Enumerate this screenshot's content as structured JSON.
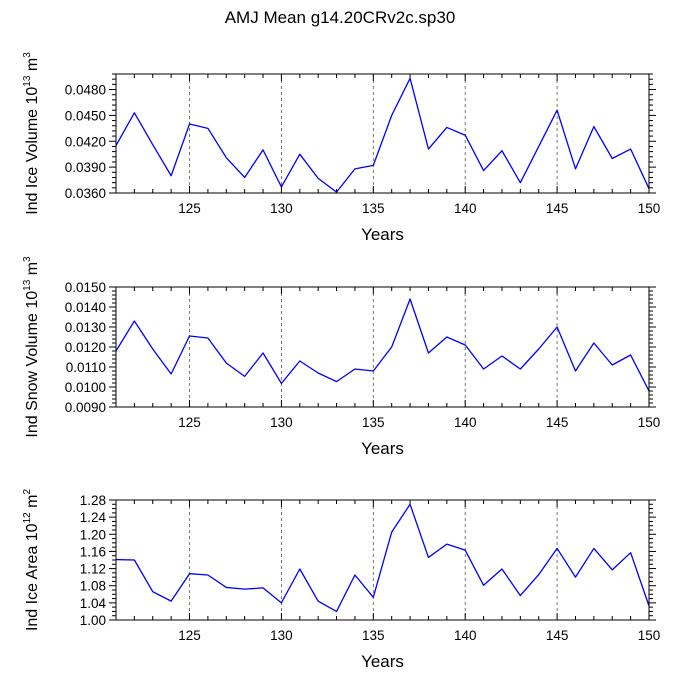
{
  "chart_data": [
    {
      "type": "line",
      "title": "AMJ Mean g14.20CRv2c.sp30",
      "ylabel": {
        "prefix": "Ind Ice Volume 10",
        "exp": "13",
        "unit": " m",
        "unit_exp": "3"
      },
      "xlabel": "Years",
      "xlim": [
        121,
        150
      ],
      "ylim": [
        0.036,
        0.0498
      ],
      "xticks": [
        125,
        130,
        135,
        140,
        145,
        150
      ],
      "yticks": [
        0.036,
        0.039,
        0.042,
        0.045,
        0.048
      ],
      "ytick_labels": [
        "0.0360",
        "0.0390",
        "0.0420",
        "0.0450",
        "0.0480"
      ],
      "yminor": 0.0006,
      "x": [
        121,
        122,
        123,
        124,
        125,
        126,
        127,
        128,
        129,
        130,
        131,
        132,
        133,
        134,
        135,
        136,
        137,
        138,
        139,
        140,
        141,
        142,
        143,
        144,
        145,
        146,
        147,
        148,
        149,
        150
      ],
      "values": [
        0.0415,
        0.0453,
        0.0416,
        0.038,
        0.044,
        0.0435,
        0.0401,
        0.0378,
        0.041,
        0.0367,
        0.0405,
        0.0377,
        0.0361,
        0.0388,
        0.0392,
        0.045,
        0.0493,
        0.0411,
        0.0436,
        0.0427,
        0.0386,
        0.0409,
        0.0372,
        0.0414,
        0.0456,
        0.0388,
        0.0437,
        0.04,
        0.0411,
        0.0365
      ],
      "color": "#0000ff"
    },
    {
      "type": "line",
      "title": "",
      "ylabel": {
        "prefix": "Ind Snow Volume 10",
        "exp": "13",
        "unit": " m",
        "unit_exp": "3"
      },
      "xlabel": "Years",
      "xlim": [
        121,
        150
      ],
      "ylim": [
        0.009,
        0.015
      ],
      "xticks": [
        125,
        130,
        135,
        140,
        145,
        150
      ],
      "yticks": [
        0.009,
        0.01,
        0.011,
        0.012,
        0.013,
        0.014,
        0.015
      ],
      "ytick_labels": [
        "0.0090",
        "0.0100",
        "0.0110",
        "0.0120",
        "0.0130",
        "0.0140",
        "0.0150"
      ],
      "yminor": 0.0002,
      "x": [
        121,
        122,
        123,
        124,
        125,
        126,
        127,
        128,
        129,
        130,
        131,
        132,
        133,
        134,
        135,
        136,
        137,
        138,
        139,
        140,
        141,
        142,
        143,
        144,
        145,
        146,
        147,
        148,
        149,
        150
      ],
      "values": [
        0.0118,
        0.0133,
        0.0119,
        0.01065,
        0.01255,
        0.01245,
        0.0112,
        0.01053,
        0.0117,
        0.01018,
        0.0113,
        0.0107,
        0.01027,
        0.0109,
        0.0108,
        0.012,
        0.0144,
        0.0117,
        0.0125,
        0.0121,
        0.0109,
        0.01155,
        0.0109,
        0.0119,
        0.013,
        0.0108,
        0.0122,
        0.0111,
        0.0116,
        0.0098
      ],
      "color": "#0000ff"
    },
    {
      "type": "line",
      "title": "",
      "ylabel": {
        "prefix": "Ind Ice Area 10",
        "exp": "12",
        "unit": " m",
        "unit_exp": "2"
      },
      "xlabel": "Years",
      "xlim": [
        121,
        150
      ],
      "ylim": [
        1.0,
        1.28
      ],
      "xticks": [
        125,
        130,
        135,
        140,
        145,
        150
      ],
      "yticks": [
        1.0,
        1.04,
        1.08,
        1.12,
        1.16,
        1.2,
        1.24,
        1.28
      ],
      "ytick_labels": [
        "1.00",
        "1.04",
        "1.08",
        "1.12",
        "1.16",
        "1.20",
        "1.24",
        "1.28"
      ],
      "yminor": 0.01,
      "x": [
        121,
        122,
        123,
        124,
        125,
        126,
        127,
        128,
        129,
        130,
        131,
        132,
        133,
        134,
        135,
        136,
        137,
        138,
        139,
        140,
        141,
        142,
        143,
        144,
        145,
        146,
        147,
        148,
        149,
        150
      ],
      "values": [
        1.141,
        1.14,
        1.066,
        1.044,
        1.108,
        1.105,
        1.076,
        1.072,
        1.075,
        1.04,
        1.119,
        1.044,
        1.02,
        1.105,
        1.053,
        1.205,
        1.27,
        1.146,
        1.177,
        1.163,
        1.081,
        1.119,
        1.057,
        1.106,
        1.167,
        1.1,
        1.167,
        1.117,
        1.157,
        1.033
      ],
      "color": "#0000ff"
    }
  ]
}
